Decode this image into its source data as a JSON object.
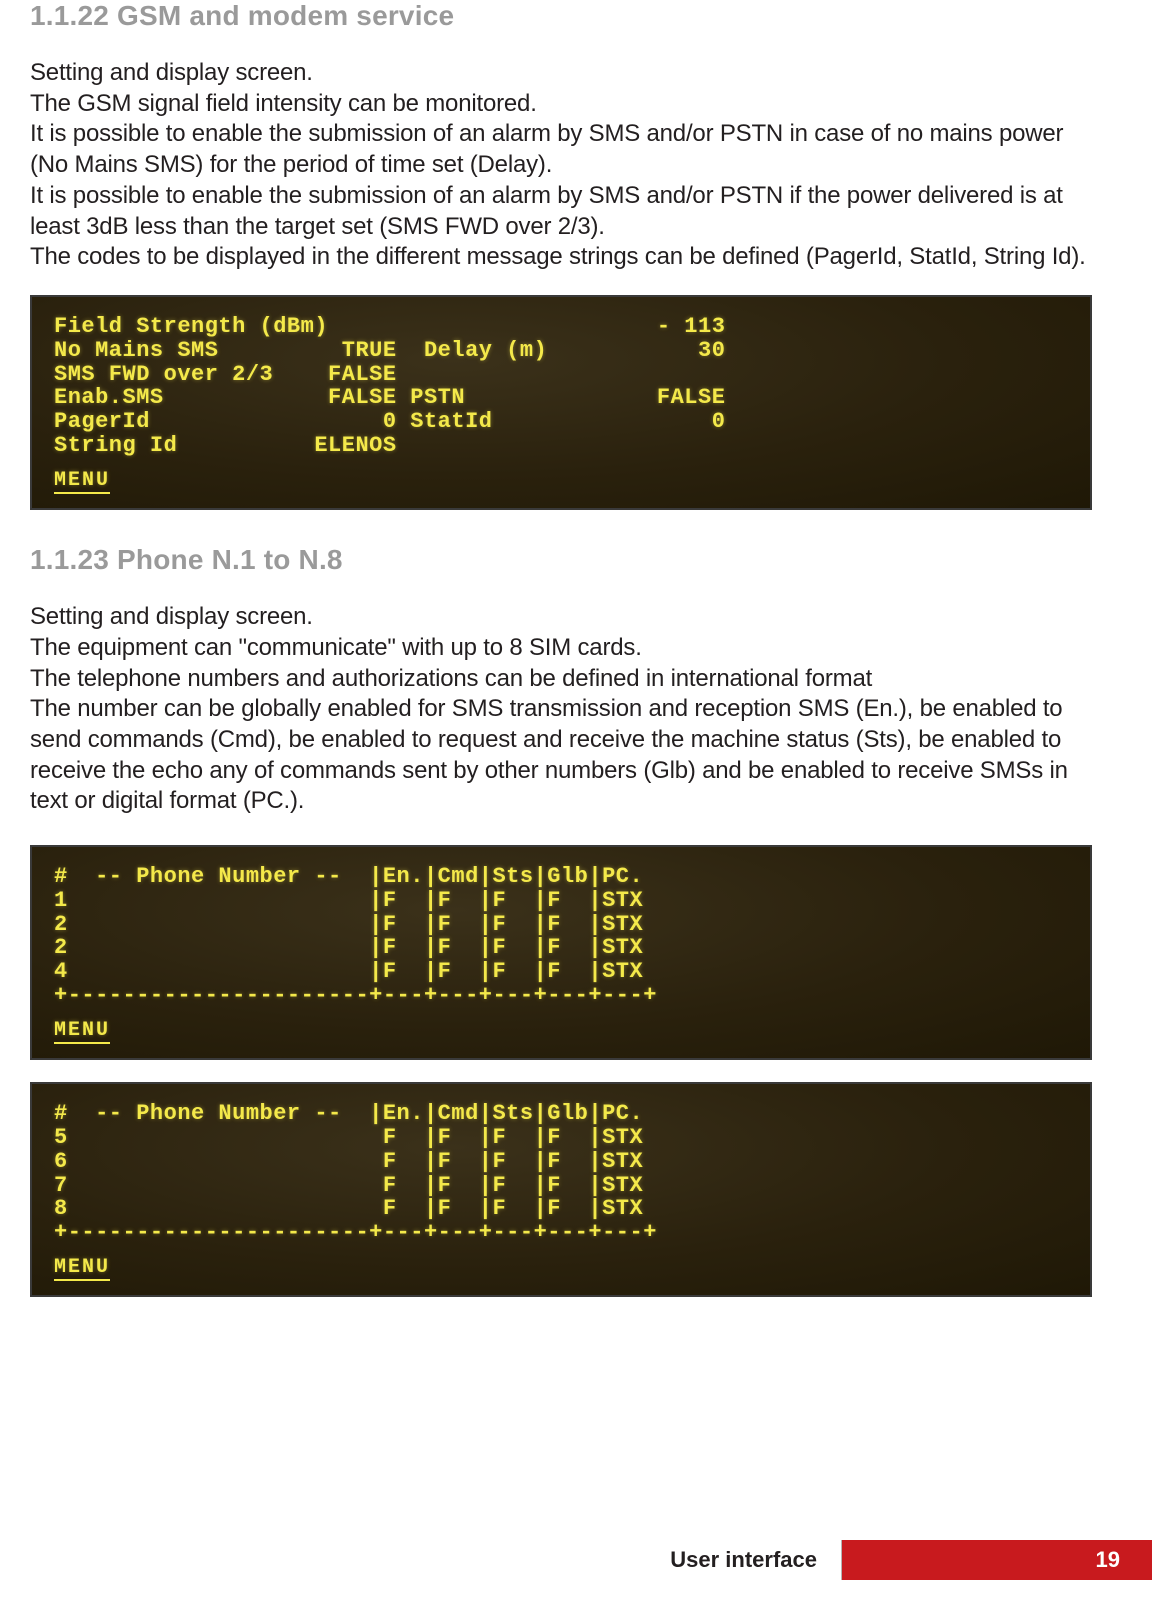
{
  "section1": {
    "heading": "1.1.22 GSM and modem service",
    "paragraphs": [
      "Setting and display screen.",
      "The GSM signal field intensity can be monitored.",
      "It is possible to enable the submission of an alarm by SMS and/or PSTN in case of no mains power (No Mains SMS) for the period of time set (Delay).",
      "It is possible to enable the submission of an alarm by SMS and/or PSTN if the power delivered is at least 3dB less than the target set (SMS FWD over 2/3).",
      "The codes to be displayed in the different message strings can be defined (PagerId, StatId, String Id)."
    ],
    "lcd": {
      "lines": [
        "Field Strength (dBm)                        - 113",
        "No Mains SMS         TRUE  Delay (m)           30",
        "SMS FWD over 2/3    FALSE",
        "Enab.SMS            FALSE PSTN              FALSE",
        "PagerId                 0 StatId                0",
        "String Id          ELENOS"
      ],
      "menu": "MENU"
    }
  },
  "section2": {
    "heading": "1.1.23 Phone N.1 to N.8",
    "paragraphs": [
      "Setting and display screen.",
      "The equipment can \"communicate\" with up to 8 SIM cards.",
      "The telephone numbers and authorizations can be defined in international format",
      "The number can be globally enabled for SMS transmission and reception SMS (En.), be enabled to send commands (Cmd), be enabled to request and receive the machine status (Sts), be enabled to receive the echo any of commands sent by other numbers (Glb) and be enabled to receive SMSs in text or digital format (PC.)."
    ],
    "lcd_a": {
      "lines": [
        "#  -- Phone Number --  |En.|Cmd|Sts|Glb|PC.",
        "1                      |F  |F  |F  |F  |STX",
        "2                      |F  |F  |F  |F  |STX",
        "2                      |F  |F  |F  |F  |STX",
        "4                      |F  |F  |F  |F  |STX",
        "+----------------------+---+---+---+---+---+"
      ],
      "menu": "MENU"
    },
    "lcd_b": {
      "lines": [
        "#  -- Phone Number --  |En.|Cmd|Sts|Glb|PC.",
        "5                       F  |F  |F  |F  |STX",
        "6                       F  |F  |F  |F  |STX",
        "7                       F  |F  |F  |F  |STX",
        "8                       F  |F  |F  |F  |STX",
        "+----------------------+---+---+---+---+---+"
      ],
      "menu": "MENU"
    }
  },
  "footer": {
    "label": "User interface",
    "page": "19",
    "accent_color": "#c81a1e"
  }
}
